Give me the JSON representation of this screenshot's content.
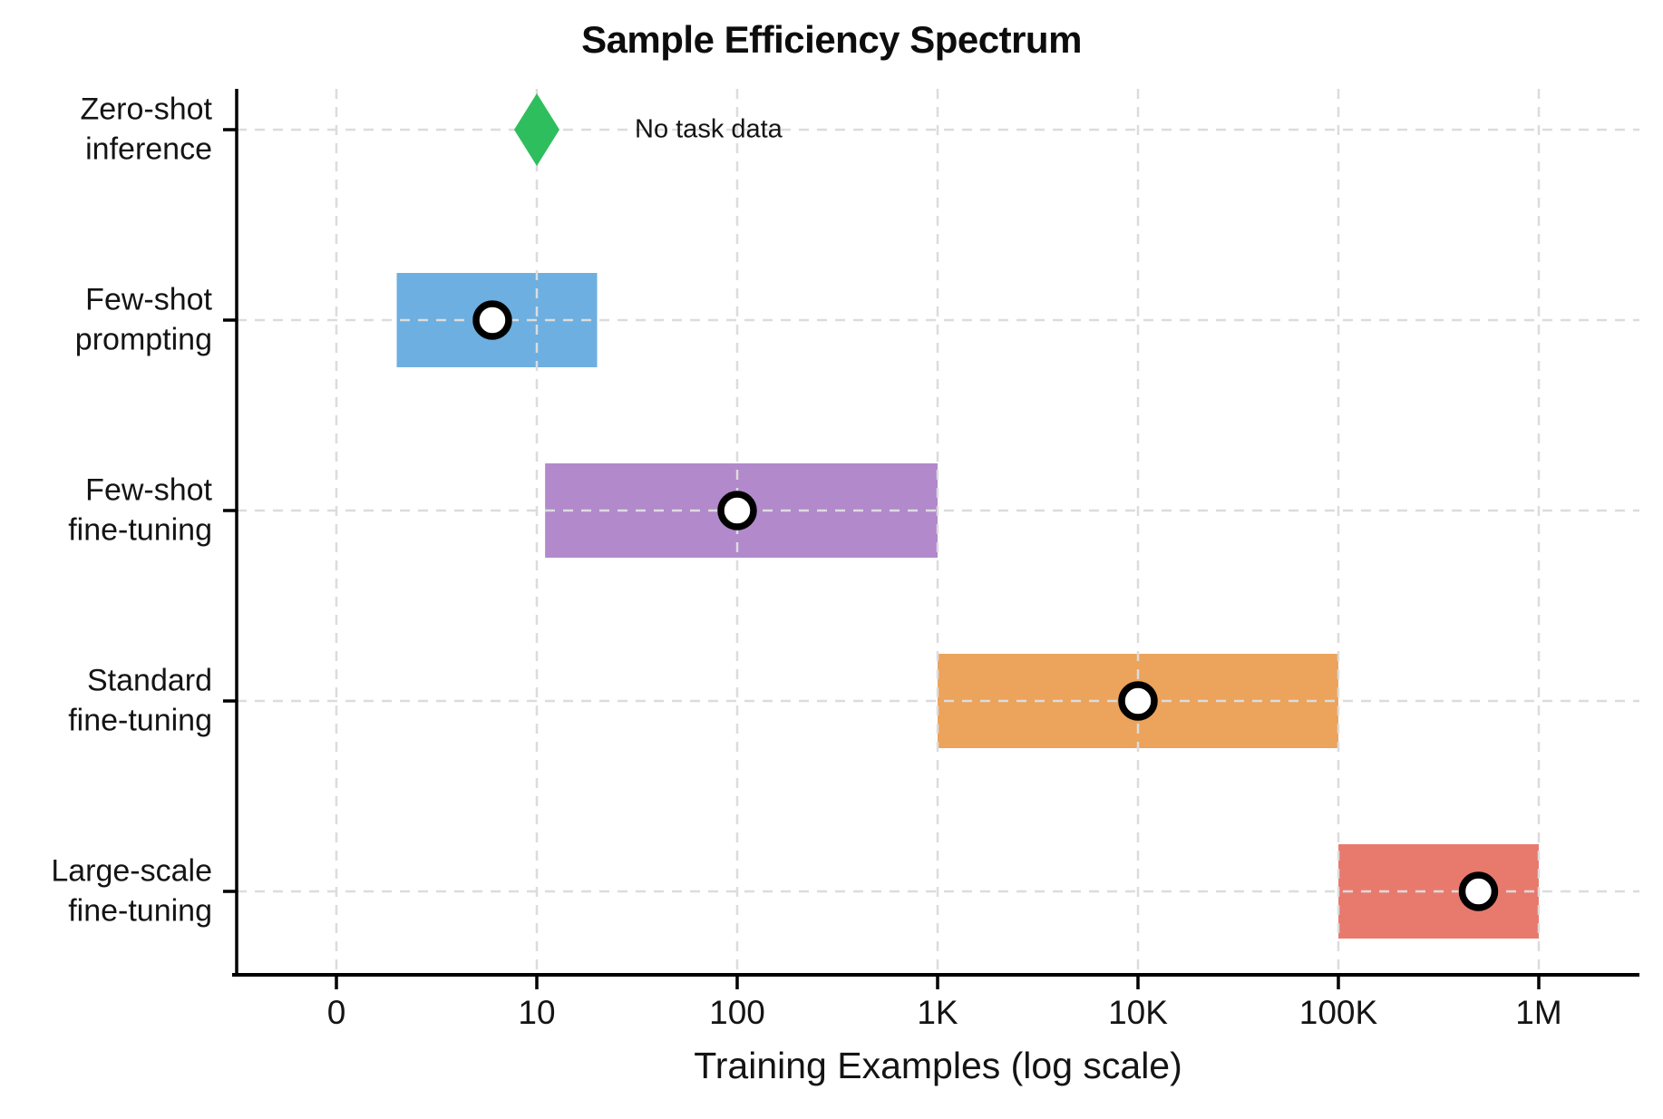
{
  "chart_data": {
    "type": "range_bar",
    "title": "Sample Efficiency Spectrum",
    "xlabel": "Training Examples (log scale)",
    "x_scale": "log",
    "grid": "dashed",
    "legend": "none",
    "x_ticks": [
      {
        "label": "0",
        "value": 1
      },
      {
        "label": "10",
        "value": 10
      },
      {
        "label": "100",
        "value": 100
      },
      {
        "label": "1K",
        "value": 1000
      },
      {
        "label": "10K",
        "value": 10000
      },
      {
        "label": "100K",
        "value": 100000
      },
      {
        "label": "1M",
        "value": 1000000
      }
    ],
    "categories": [
      "Zero-shot\ninference",
      "Few-shot\nprompting",
      "Few-shot\nfine-tuning",
      "Standard\nfine-tuning",
      "Large-scale\nfine-tuning"
    ],
    "series": [
      {
        "category": "Zero-shot inference",
        "type": "point",
        "marker": "diamond",
        "value": 10,
        "color": "#2FBE5D",
        "annotation": "No task data"
      },
      {
        "category": "Few-shot prompting",
        "type": "range",
        "min": 2,
        "max": 20,
        "typical": 6,
        "color": "#6DAFE0"
      },
      {
        "category": "Few-shot fine-tuning",
        "type": "range",
        "min": 11,
        "max": 1000,
        "typical": 100,
        "color": "#B289CB"
      },
      {
        "category": "Standard fine-tuning",
        "type": "range",
        "min": 1000,
        "max": 100000,
        "typical": 10000,
        "color": "#ECA35B"
      },
      {
        "category": "Large-scale fine-tuning",
        "type": "range",
        "min": 100000,
        "max": 1000000,
        "typical": 500000,
        "color": "#E87A6D"
      }
    ],
    "marker_style": {
      "fill": "#FFFFFF",
      "edge": "#000000"
    }
  }
}
